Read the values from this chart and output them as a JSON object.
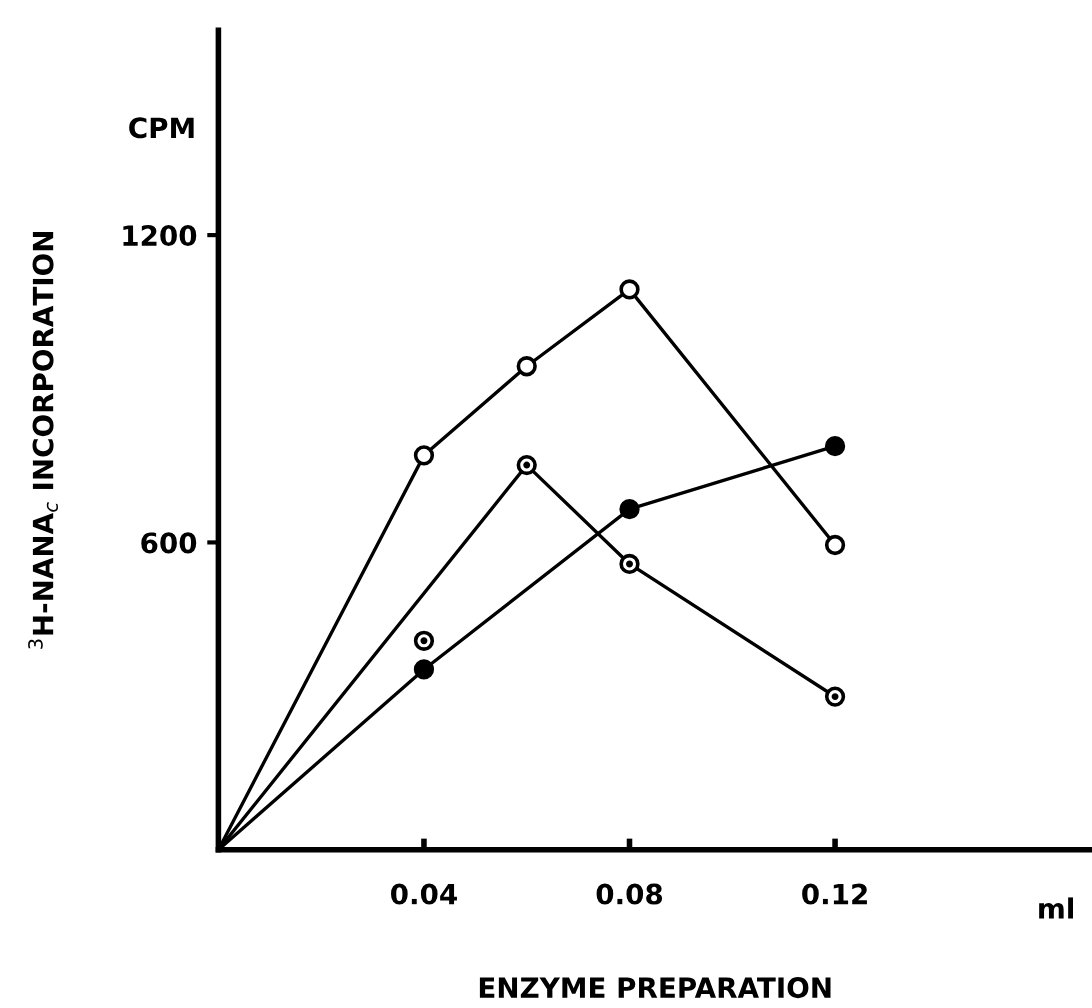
{
  "chart_data": {
    "type": "line",
    "xlabel": "ENZYME PREPARATION",
    "ylabel": "$^{3}$H-NANA$_{c}$ INCORPORATION",
    "annotations": [
      "CPM",
      "ml"
    ],
    "xlim": [
      0,
      0.17
    ],
    "ylim": [
      0,
      1600
    ],
    "xticks": [
      0.04,
      0.08,
      0.12
    ],
    "yticks": [
      600,
      1200
    ],
    "grid": false,
    "legend": false,
    "line_style": "solid",
    "series": [
      {
        "color": "#000000",
        "marker": "circle",
        "x": [
          0,
          0.04,
          0.06,
          0.08,
          0.12
        ],
        "values": [
          0,
          770,
          944,
          1094,
          595
        ]
      },
      {
        "color": "#000000",
        "marker": "circle-dot",
        "x": [
          0,
          0.06,
          0.08,
          0.12
        ],
        "values": [
          0,
          751,
          558,
          299
        ]
      },
      {
        "type": "scatter",
        "color": "#000000",
        "marker": "circle-dot",
        "x": [
          0.04
        ],
        "values": [
          408
        ]
      },
      {
        "color": "#000000",
        "marker": "filled-circle",
        "x": [
          0,
          0.04,
          0.08,
          0.12
        ],
        "values": [
          0,
          352,
          665,
          788
        ]
      }
    ]
  }
}
